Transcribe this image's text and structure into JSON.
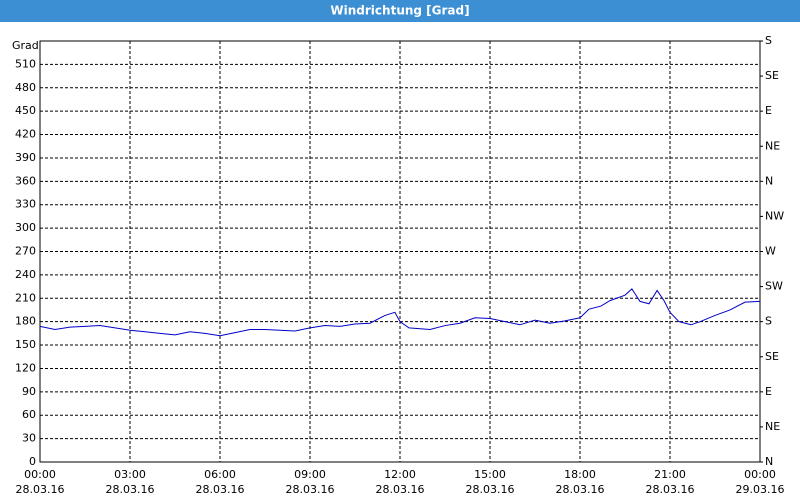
{
  "chart_data": {
    "type": "line",
    "title": "Windrichtung [Grad]",
    "ylabel": "Grad",
    "color": "#0000c8",
    "grid": true,
    "xlim": [
      0,
      24
    ],
    "ylim": [
      0,
      540
    ],
    "y2lim": [
      0,
      540
    ],
    "xticks": [
      {
        "value": 0,
        "label": "00:00"
      },
      {
        "value": 3,
        "label": "03:00"
      },
      {
        "value": 6,
        "label": "06:00"
      },
      {
        "value": 9,
        "label": "09:00"
      },
      {
        "value": 12,
        "label": "12:00"
      },
      {
        "value": 15,
        "label": "15:00"
      },
      {
        "value": 18,
        "label": "18:00"
      },
      {
        "value": 21,
        "label": "21:00"
      },
      {
        "value": 24,
        "label": "00:00"
      }
    ],
    "xtick_dates": [
      "28.03.16",
      "28.03.16",
      "28.03.16",
      "28.03.16",
      "28.03.16",
      "28.03.16",
      "28.03.16",
      "28.03.16",
      "29.03.16"
    ],
    "yticks": [
      0,
      30,
      60,
      90,
      120,
      150,
      180,
      210,
      240,
      270,
      300,
      330,
      360,
      390,
      420,
      450,
      480,
      510
    ],
    "y2ticks": [
      {
        "value": 0,
        "label": "N"
      },
      {
        "value": 45,
        "label": "NE"
      },
      {
        "value": 90,
        "label": "E"
      },
      {
        "value": 135,
        "label": "SE"
      },
      {
        "value": 180,
        "label": "S"
      },
      {
        "value": 225,
        "label": "SW"
      },
      {
        "value": 270,
        "label": "W"
      },
      {
        "value": 315,
        "label": "NW"
      },
      {
        "value": 360,
        "label": "N"
      },
      {
        "value": 405,
        "label": "NE"
      },
      {
        "value": 450,
        "label": "E"
      },
      {
        "value": 495,
        "label": "SE"
      },
      {
        "value": 540,
        "label": "S"
      }
    ],
    "x": [
      0,
      0.5,
      1,
      1.5,
      2,
      2.5,
      3,
      3.5,
      4,
      4.5,
      5,
      5.5,
      6,
      6.5,
      7,
      7.5,
      8,
      8.5,
      9,
      9.5,
      10,
      10.5,
      11,
      11.5,
      11.83,
      12,
      12.3,
      13,
      13.5,
      14,
      14.5,
      15,
      15.5,
      16,
      16.5,
      17,
      17.5,
      18,
      18.3,
      18.7,
      19,
      19.5,
      19.73,
      20,
      20.3,
      20.57,
      20.8,
      21,
      21.3,
      21.7,
      22,
      22.5,
      23,
      23.5,
      24
    ],
    "values": [
      174,
      170,
      173,
      174,
      175,
      172,
      169,
      167,
      165,
      163,
      167,
      165,
      162,
      166,
      170,
      170,
      169,
      168,
      172,
      175,
      174,
      177,
      178,
      188,
      192,
      180,
      172,
      170,
      175,
      178,
      185,
      184,
      180,
      176,
      182,
      178,
      181,
      185,
      196,
      200,
      207,
      214,
      222,
      206,
      203,
      220,
      207,
      192,
      180,
      176,
      180,
      188,
      195,
      205,
      206
    ]
  }
}
